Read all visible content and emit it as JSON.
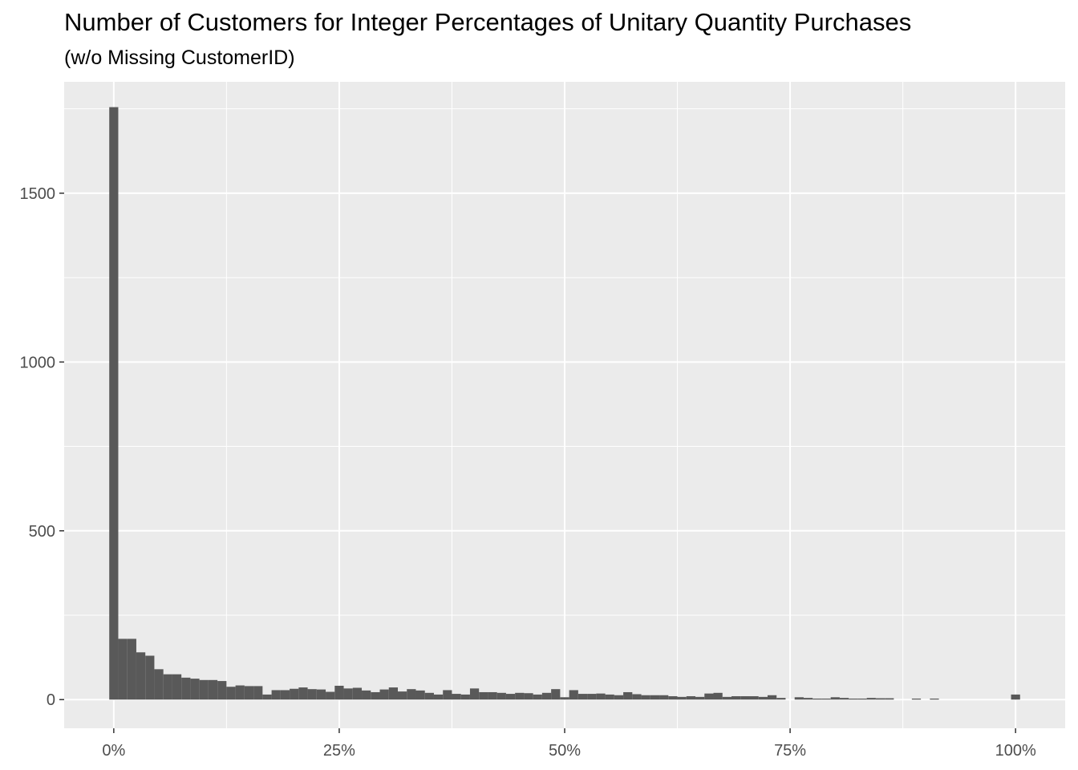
{
  "chart_data": {
    "type": "bar",
    "title": "Number of Customers for Integer Percentages of Unitary Quantity Purchases",
    "subtitle": "(w/o Missing CustomerID)",
    "xlabel": "",
    "ylabel": "",
    "x_ticks": [
      "0%",
      "25%",
      "50%",
      "75%",
      "100%"
    ],
    "y_ticks": [
      "0",
      "500",
      "1000",
      "1500"
    ],
    "x_tick_values": [
      0,
      25,
      50,
      75,
      100
    ],
    "y_tick_values": [
      0,
      500,
      1000,
      1500
    ],
    "xlim": [
      -5.5,
      105.5
    ],
    "ylim": [
      -85,
      1830
    ],
    "bin_width": 1,
    "grid": true,
    "bar_color": "#595959",
    "panel_color": "#ebebeb",
    "x": [
      0,
      1,
      2,
      3,
      4,
      5,
      6,
      7,
      8,
      9,
      10,
      11,
      12,
      13,
      14,
      15,
      16,
      17,
      18,
      19,
      20,
      21,
      22,
      23,
      24,
      25,
      26,
      27,
      28,
      29,
      30,
      31,
      32,
      33,
      34,
      35,
      36,
      37,
      38,
      39,
      40,
      41,
      42,
      43,
      44,
      45,
      46,
      47,
      48,
      49,
      50,
      51,
      52,
      53,
      54,
      55,
      56,
      57,
      58,
      59,
      60,
      61,
      62,
      63,
      64,
      65,
      66,
      67,
      68,
      69,
      70,
      71,
      72,
      73,
      74,
      75,
      76,
      77,
      78,
      79,
      80,
      81,
      82,
      83,
      84,
      85,
      86,
      87,
      88,
      89,
      90,
      91,
      92,
      93,
      94,
      95,
      96,
      97,
      98,
      99,
      100
    ],
    "values": [
      1755,
      180,
      180,
      140,
      130,
      90,
      75,
      75,
      65,
      62,
      58,
      58,
      55,
      38,
      42,
      40,
      40,
      15,
      28,
      28,
      32,
      36,
      31,
      30,
      23,
      41,
      33,
      35,
      27,
      22,
      30,
      36,
      24,
      31,
      27,
      20,
      15,
      28,
      17,
      15,
      33,
      22,
      22,
      20,
      17,
      20,
      19,
      15,
      20,
      31,
      7,
      28,
      17,
      17,
      18,
      15,
      13,
      22,
      16,
      13,
      13,
      13,
      10,
      8,
      10,
      8,
      18,
      20,
      8,
      10,
      10,
      10,
      8,
      13,
      5,
      0,
      7,
      5,
      3,
      3,
      7,
      5,
      3,
      3,
      5,
      4,
      4,
      0,
      0,
      3,
      0,
      3,
      0,
      0,
      0,
      0,
      0,
      0,
      0,
      0,
      15
    ]
  }
}
